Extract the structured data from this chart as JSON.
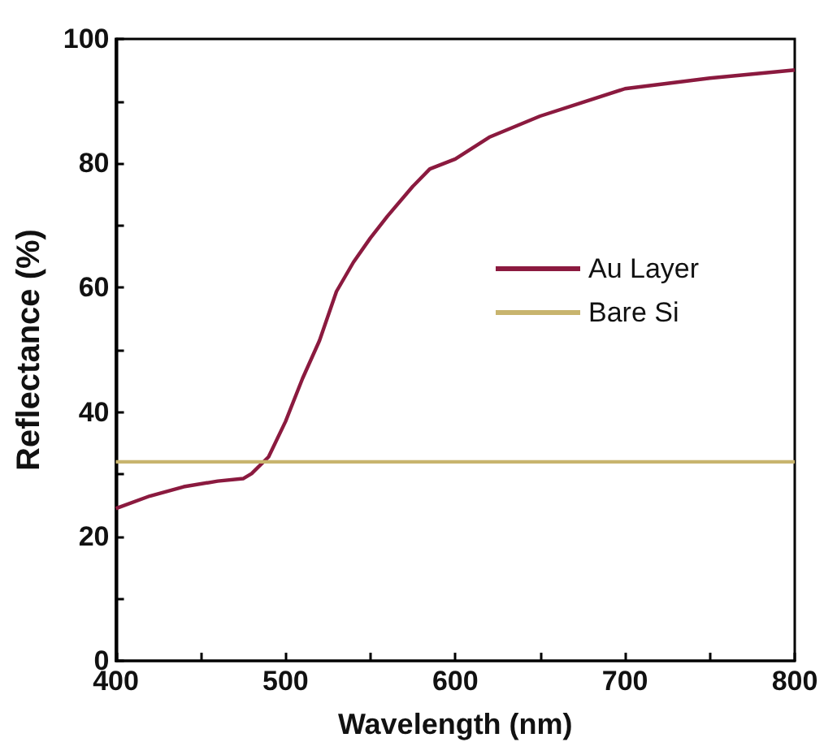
{
  "chart_data": {
    "type": "line",
    "xlabel": "Wavelength (nm)",
    "ylabel": "Reflectance (%)",
    "xlim": [
      400,
      800
    ],
    "ylim": [
      0,
      100
    ],
    "xticks": [
      400,
      {
        "value": 450,
        "label": null
      },
      500,
      {
        "value": 550,
        "label": null
      },
      600,
      {
        "value": 650,
        "label": null
      },
      700,
      {
        "value": 750,
        "label": null
      },
      800
    ],
    "yticks": [
      0,
      {
        "value": 10,
        "label": null
      },
      20,
      {
        "value": 30,
        "label": null
      },
      40,
      {
        "value": 50,
        "label": null
      },
      60,
      {
        "value": 70,
        "label": null
      },
      80,
      {
        "value": 90,
        "label": null
      },
      100
    ],
    "grid": false,
    "legend": "right",
    "marker": "none",
    "line_style": "solid",
    "series": [
      {
        "name": "Au Layer",
        "color": "#8b1a3f",
        "x": [
          400,
          420,
          440,
          460,
          475,
          480,
          490,
          500,
          510,
          520,
          530,
          540,
          550,
          560,
          575,
          585,
          600,
          620,
          650,
          675,
          700,
          750,
          800
        ],
        "values": [
          24.5,
          26.5,
          28.0,
          28.9,
          29.3,
          30.1,
          32.8,
          38.5,
          45.4,
          51.5,
          59.4,
          64.1,
          68,
          71.5,
          76.3,
          79.1,
          80.7,
          84.2,
          87.6,
          89.8,
          92.0,
          93.7,
          95.0
        ]
      },
      {
        "name": "Bare Si",
        "color": "#c8b46e",
        "x": [
          400,
          800
        ],
        "values": [
          32,
          32
        ]
      }
    ]
  }
}
